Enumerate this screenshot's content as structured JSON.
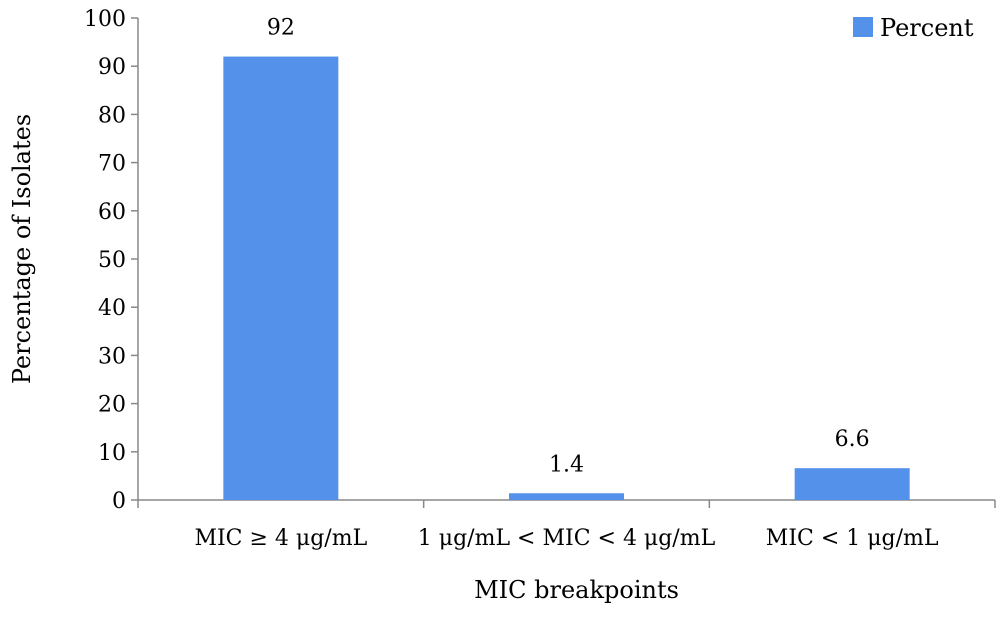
{
  "chart_data": {
    "type": "bar",
    "categories": [
      "MIC  ≥ 4 μg/mL",
      "1 μg/mL < MIC < 4 μg/mL",
      "MIC < 1 μg/mL"
    ],
    "series": [
      {
        "name": "Percent",
        "values": [
          92,
          1.4,
          6.6
        ],
        "color": "#5391ea"
      }
    ],
    "data_labels": [
      "92",
      "1.4",
      "6.6"
    ],
    "xlabel": "MIC breakpoints",
    "ylabel": "Percentage of Isolates",
    "ylim": [
      0,
      100
    ],
    "yticks": [
      0,
      10,
      20,
      30,
      40,
      50,
      60,
      70,
      80,
      90,
      100
    ],
    "grid": false,
    "legend_position": "top-right"
  }
}
